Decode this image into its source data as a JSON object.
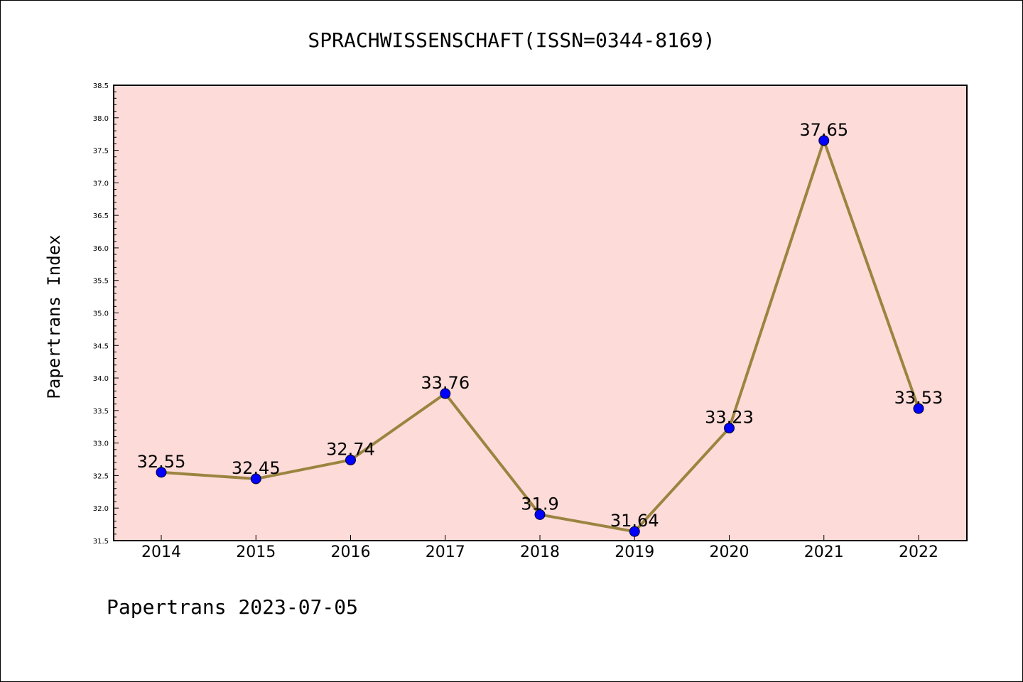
{
  "chart_data": {
    "type": "line",
    "title": "SPRACHWISSENSCHAFT(ISSN=0344-8169)",
    "xlabel": "",
    "ylabel": "Papertrans Index",
    "categories": [
      "2014",
      "2015",
      "2016",
      "2017",
      "2018",
      "2019",
      "2020",
      "2021",
      "2022"
    ],
    "values": [
      32.55,
      32.45,
      32.74,
      33.76,
      31.9,
      31.64,
      33.23,
      37.65,
      33.53
    ],
    "data_labels": [
      "32.55",
      "32.45",
      "32.74",
      "33.76",
      "31.9",
      "31.64",
      "33.23",
      "37.65",
      "33.53"
    ],
    "ylim": [
      31.5,
      38.5
    ],
    "yticks": [
      "31.5",
      "32.0",
      "32.5",
      "33.0",
      "33.5",
      "34.0",
      "34.5",
      "35.0",
      "35.5",
      "36.0",
      "36.5",
      "37.0",
      "37.5",
      "38.0",
      "38.5"
    ],
    "grid": false,
    "legend": "none",
    "colors": {
      "plot_background": "#fddbd8",
      "line": "#9b8440",
      "marker": "#0000ff"
    }
  },
  "footer": {
    "text": "Papertrans 2023-07-05"
  }
}
